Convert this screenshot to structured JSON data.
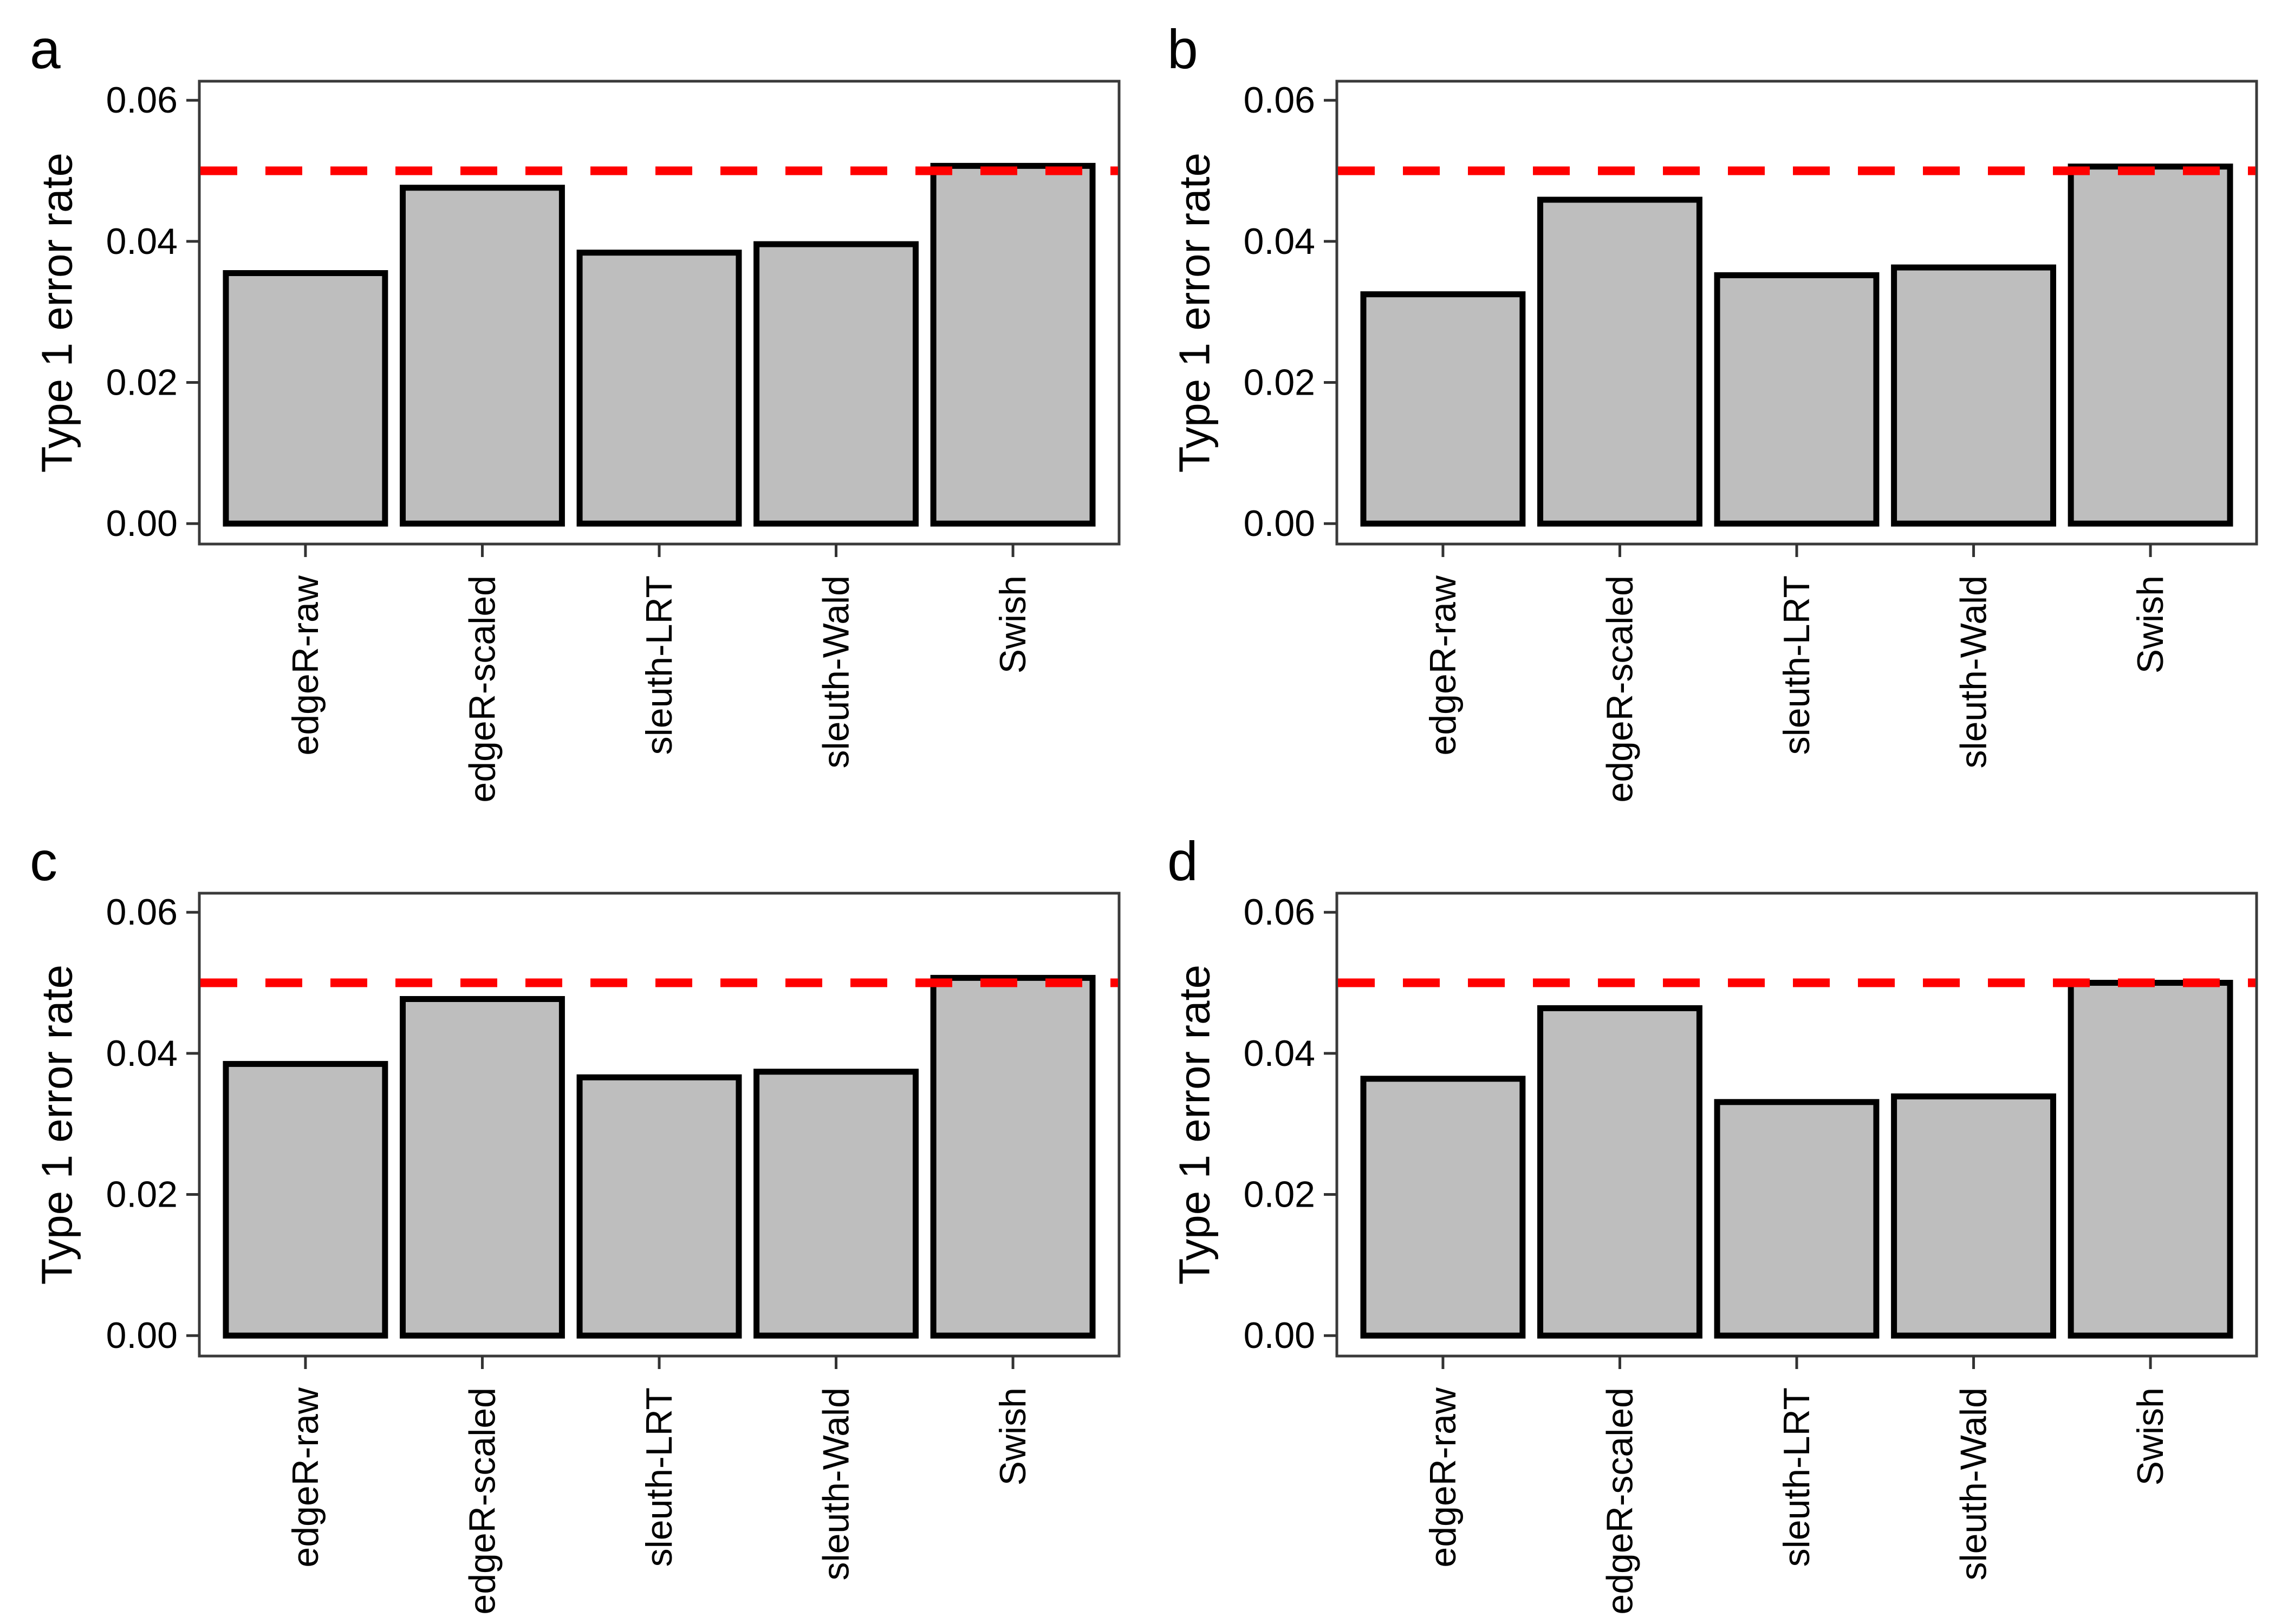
{
  "figure": {
    "background": "#ffffff",
    "layout": "2x2 panel grid of bar charts"
  },
  "colors": {
    "bar_fill": "#bebebe",
    "bar_stroke": "#000000",
    "panel_border": "#3a3a3a",
    "tick": "#333333",
    "axis_text": "#000000",
    "hline": "#ff0000",
    "panel_label": "#000000"
  },
  "chart_data": [
    {
      "panel_label": "a",
      "type": "bar",
      "categories": [
        "edgeR-raw",
        "edgeR-scaled",
        "sleuth-LRT",
        "sleuth-Wald",
        "Swish"
      ],
      "values": [
        0.0355,
        0.0476,
        0.0384,
        0.0396,
        0.0507
      ],
      "title": "",
      "xlabel": "",
      "ylabel": "Type 1 error rate",
      "ytick_values": [
        0,
        0.02,
        0.04,
        0.06
      ],
      "ytick_labels": [
        "0.00",
        "0.02",
        "0.04",
        "0.06"
      ],
      "ylim": [
        -0.0029,
        0.0627
      ],
      "grid": "off",
      "legend": "none",
      "hline": {
        "value": 0.05,
        "color": "#ff0000",
        "style": "dashed"
      }
    },
    {
      "panel_label": "b",
      "type": "bar",
      "categories": [
        "edgeR-raw",
        "edgeR-scaled",
        "sleuth-LRT",
        "sleuth-Wald",
        "Swish"
      ],
      "values": [
        0.0325,
        0.0459,
        0.0352,
        0.0363,
        0.0506
      ],
      "title": "",
      "xlabel": "",
      "ylabel": "Type 1 error rate",
      "ytick_values": [
        0,
        0.02,
        0.04,
        0.06
      ],
      "ytick_labels": [
        "0.00",
        "0.02",
        "0.04",
        "0.06"
      ],
      "ylim": [
        -0.0029,
        0.0627
      ],
      "grid": "off",
      "legend": "none",
      "hline": {
        "value": 0.05,
        "color": "#ff0000",
        "style": "dashed"
      }
    },
    {
      "panel_label": "c",
      "type": "bar",
      "categories": [
        "edgeR-raw",
        "edgeR-scaled",
        "sleuth-LRT",
        "sleuth-Wald",
        "Swish"
      ],
      "values": [
        0.0385,
        0.0477,
        0.0366,
        0.0374,
        0.0507
      ],
      "title": "",
      "xlabel": "",
      "ylabel": "Type 1 error rate",
      "ytick_values": [
        0,
        0.02,
        0.04,
        0.06
      ],
      "ytick_labels": [
        "0.00",
        "0.02",
        "0.04",
        "0.06"
      ],
      "ylim": [
        -0.0029,
        0.0627
      ],
      "grid": "off",
      "legend": "none",
      "hline": {
        "value": 0.05,
        "color": "#ff0000",
        "style": "dashed"
      }
    },
    {
      "panel_label": "d",
      "type": "bar",
      "categories": [
        "edgeR-raw",
        "edgeR-scaled",
        "sleuth-LRT",
        "sleuth-Wald",
        "Swish"
      ],
      "values": [
        0.0364,
        0.0464,
        0.0331,
        0.0339,
        0.05
      ],
      "title": "",
      "xlabel": "",
      "ylabel": "Type 1 error rate",
      "ytick_values": [
        0,
        0.02,
        0.04,
        0.06
      ],
      "ytick_labels": [
        "0.00",
        "0.02",
        "0.04",
        "0.06"
      ],
      "ylim": [
        -0.0029,
        0.0627
      ],
      "grid": "off",
      "legend": "none",
      "hline": {
        "value": 0.05,
        "color": "#ff0000",
        "style": "dashed"
      }
    }
  ]
}
